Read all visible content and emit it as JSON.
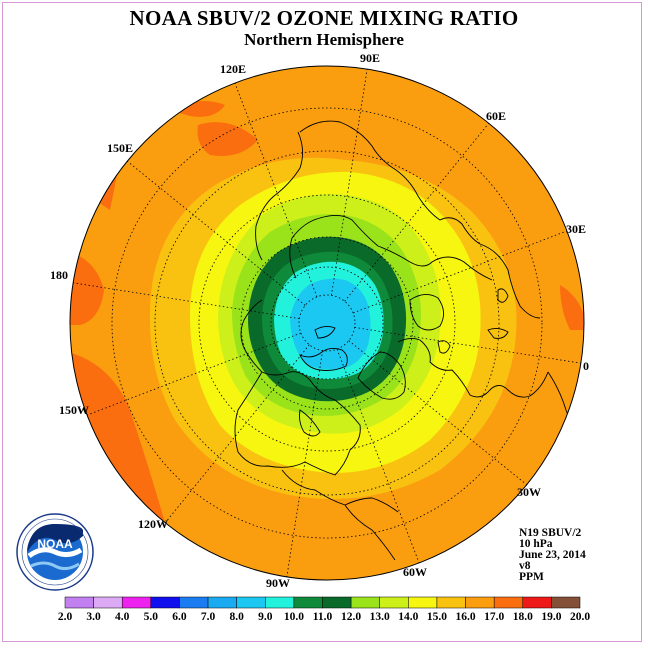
{
  "title": "NOAA SBUV/2 OZONE MIXING RATIO",
  "subtitle": "Northern Hemisphere",
  "longitude_labels": [
    "90E",
    "60E",
    "30E",
    "0",
    "30W",
    "60W",
    "90W",
    "120W",
    "150W",
    "180",
    "150E",
    "120E"
  ],
  "info": {
    "satellite": "N19 SBUV/2",
    "level": "10 hPa",
    "date": "June 23, 2014",
    "version": "v8",
    "units": "PPM"
  },
  "logo": {
    "text": "NOAA",
    "ring_text": "NATIONAL OCEANIC AND ATMOSPHERIC ADMINISTRATION · U.S. DEPARTMENT OF COMMERCE"
  },
  "colorbar": {
    "labels": [
      "2.0",
      "3.0",
      "4.0",
      "5.0",
      "6.0",
      "7.0",
      "8.0",
      "9.0",
      "10.0",
      "11.0",
      "12.0",
      "13.0",
      "14.0",
      "15.0",
      "16.0",
      "17.0",
      "18.0",
      "19.0",
      "20.0"
    ],
    "colors": [
      "#c27ff0",
      "#dcaaf4",
      "#ee22ee",
      "#1010ee",
      "#1a7cf0",
      "#1aaaf2",
      "#1ac8f2",
      "#22f2dc",
      "#0e8a3a",
      "#0a6a2a",
      "#9ae21a",
      "#cef01a",
      "#f6f610",
      "#fac210",
      "#fa9e10",
      "#fa6e10",
      "#ee1a1a",
      "#845038"
    ]
  }
}
